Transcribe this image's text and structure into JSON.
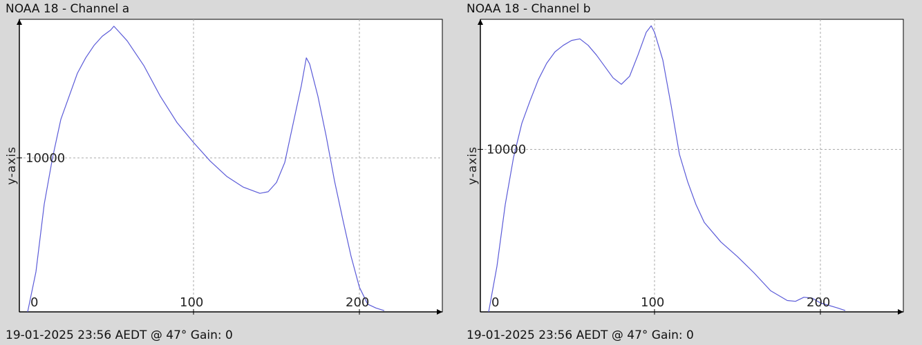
{
  "chart_data": [
    {
      "type": "line",
      "title": "NOAA 18 - Channel a",
      "ylabel": "y-axis",
      "xlabel": "",
      "footer": "19-01-2025 23:56 AEDT @ 47° Gain: 0",
      "xlim": [
        -5,
        250
      ],
      "ylim": [
        0,
        19000
      ],
      "x_ticks": [
        0,
        100,
        200
      ],
      "y_ticks": [
        10000
      ],
      "grid": true,
      "series": [
        {
          "color": "#5a5ad8",
          "points": [
            [
              0,
              0
            ],
            [
              5,
              2600
            ],
            [
              10,
              7000
            ],
            [
              15,
              10000
            ],
            [
              20,
              12500
            ],
            [
              25,
              14000
            ],
            [
              30,
              15500
            ],
            [
              35,
              16500
            ],
            [
              40,
              17300
            ],
            [
              45,
              17900
            ],
            [
              50,
              18300
            ],
            [
              52,
              18550
            ],
            [
              55,
              18200
            ],
            [
              60,
              17600
            ],
            [
              70,
              16000
            ],
            [
              80,
              14000
            ],
            [
              90,
              12300
            ],
            [
              100,
              11000
            ],
            [
              110,
              9800
            ],
            [
              120,
              8800
            ],
            [
              130,
              8100
            ],
            [
              140,
              7700
            ],
            [
              145,
              7800
            ],
            [
              150,
              8400
            ],
            [
              155,
              9700
            ],
            [
              160,
              12200
            ],
            [
              165,
              14700
            ],
            [
              168,
              16500
            ],
            [
              170,
              16100
            ],
            [
              175,
              14000
            ],
            [
              180,
              11400
            ],
            [
              185,
              8500
            ],
            [
              190,
              6000
            ],
            [
              195,
              3600
            ],
            [
              200,
              1600
            ],
            [
              205,
              500
            ],
            [
              210,
              250
            ],
            [
              215,
              80
            ]
          ]
        }
      ]
    },
    {
      "type": "line",
      "title": "NOAA 18 - Channel b",
      "ylabel": "y-axis",
      "xlabel": "",
      "footer": "19-01-2025 23:56 AEDT @ 47° Gain: 0",
      "xlim": [
        -5,
        250
      ],
      "ylim": [
        0,
        18000
      ],
      "x_ticks": [
        0,
        100,
        200
      ],
      "y_ticks": [
        10000
      ],
      "grid": true,
      "series": [
        {
          "color": "#5a5ad8",
          "points": [
            [
              0,
              0
            ],
            [
              5,
              2800
            ],
            [
              10,
              6600
            ],
            [
              15,
              9500
            ],
            [
              20,
              11600
            ],
            [
              25,
              13000
            ],
            [
              30,
              14300
            ],
            [
              35,
              15300
            ],
            [
              40,
              16000
            ],
            [
              45,
              16400
            ],
            [
              50,
              16700
            ],
            [
              55,
              16800
            ],
            [
              60,
              16400
            ],
            [
              65,
              15800
            ],
            [
              70,
              15100
            ],
            [
              75,
              14400
            ],
            [
              80,
              14000
            ],
            [
              85,
              14500
            ],
            [
              90,
              15800
            ],
            [
              95,
              17200
            ],
            [
              98,
              17600
            ],
            [
              100,
              17200
            ],
            [
              105,
              15500
            ],
            [
              110,
              12700
            ],
            [
              115,
              9700
            ],
            [
              120,
              8000
            ],
            [
              125,
              6600
            ],
            [
              130,
              5500
            ],
            [
              140,
              4300
            ],
            [
              150,
              3400
            ],
            [
              160,
              2400
            ],
            [
              170,
              1300
            ],
            [
              180,
              700
            ],
            [
              185,
              650
            ],
            [
              190,
              900
            ],
            [
              195,
              850
            ],
            [
              200,
              550
            ],
            [
              210,
              250
            ],
            [
              215,
              80
            ]
          ]
        }
      ]
    }
  ]
}
